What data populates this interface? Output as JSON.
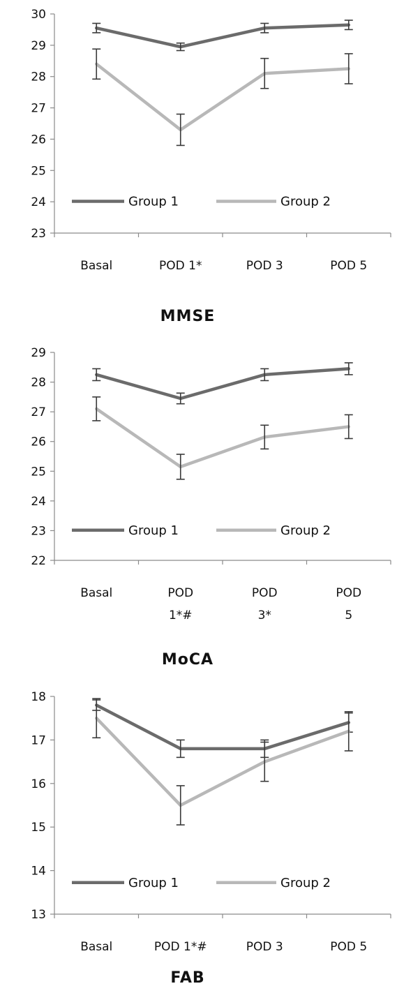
{
  "colors": {
    "group1": "#6b6b6b",
    "group2": "#b8b8b8",
    "axis": "#8a8a8a",
    "errorbar": "#3a3a3a"
  },
  "chart_data": [
    {
      "type": "line",
      "title": "MMSE",
      "categories": [
        "Basal",
        "POD 1*",
        "POD 3",
        "POD 5"
      ],
      "ylim": [
        23,
        30
      ],
      "yticks": [
        23,
        24,
        25,
        26,
        27,
        28,
        29,
        30
      ],
      "grid": false,
      "legend": "bottom-center",
      "series": [
        {
          "name": "Group 1",
          "values": [
            29.55,
            28.95,
            29.55,
            29.65
          ],
          "errors": [
            0.15,
            0.12,
            0.15,
            0.15
          ]
        },
        {
          "name": "Group 2",
          "values": [
            28.4,
            26.3,
            28.1,
            28.25
          ],
          "errors": [
            0.48,
            0.5,
            0.48,
            0.48
          ]
        }
      ]
    },
    {
      "type": "line",
      "title": "MoCA",
      "categories": [
        "Basal",
        "POD 1*#",
        "POD 3*",
        "POD 5"
      ],
      "ylim": [
        22,
        29
      ],
      "yticks": [
        22,
        23,
        24,
        25,
        26,
        27,
        28,
        29
      ],
      "grid": false,
      "legend": "bottom-center",
      "series": [
        {
          "name": "Group 1",
          "values": [
            28.25,
            27.45,
            28.25,
            28.45
          ],
          "errors": [
            0.2,
            0.18,
            0.2,
            0.2
          ]
        },
        {
          "name": "Group 2",
          "values": [
            27.1,
            25.15,
            26.15,
            26.5
          ],
          "errors": [
            0.4,
            0.42,
            0.4,
            0.4
          ]
        }
      ]
    },
    {
      "type": "line",
      "title": "FAB",
      "categories": [
        "Basal",
        "POD 1*#",
        "POD 3",
        "POD 5"
      ],
      "ylim": [
        13,
        18
      ],
      "yticks": [
        13,
        14,
        15,
        16,
        17,
        18
      ],
      "grid": false,
      "legend": "bottom-center",
      "series": [
        {
          "name": "Group 1",
          "values": [
            17.8,
            16.8,
            16.8,
            17.4
          ],
          "errors": [
            0.12,
            0.2,
            0.2,
            0.22
          ]
        },
        {
          "name": "Group 2",
          "values": [
            17.5,
            15.5,
            16.5,
            17.2
          ],
          "errors": [
            0.45,
            0.45,
            0.45,
            0.45
          ]
        }
      ]
    }
  ]
}
